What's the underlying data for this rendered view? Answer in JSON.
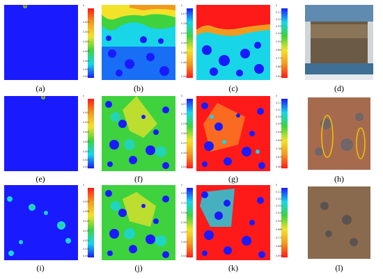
{
  "captions": [
    "(a)",
    "(b)",
    "(c)",
    "(d)",
    "(e)",
    "(f)",
    "(g)",
    "(h)",
    "(i)",
    "(j)",
    "(k)",
    "(l)"
  ],
  "colorbars": {
    "a": {
      "top": "0",
      "ticks": [
        "0.001",
        "0.001",
        "0.002",
        "0.003",
        "0.003",
        "0.004",
        "0.004"
      ]
    },
    "b": {
      "top": "0",
      "ticks": [
        "0.079",
        "0.158",
        "0.231",
        "0.305",
        "0.385",
        "0.462",
        "0.490"
      ]
    },
    "c": {
      "top": "0",
      "ticks": [
        "0.11",
        "0.221",
        "0.332",
        "0.442",
        "0.552",
        "0.663",
        "0.772",
        "0.883",
        "0.994"
      ]
    },
    "e": {
      "top": "0",
      "ticks": [
        "0.001",
        "0.001",
        "0.002",
        "0.002",
        "0.003",
        "0.003",
        "0.003"
      ]
    },
    "f": {
      "top": "0",
      "ticks": [
        "0.077",
        "0.151",
        "0.228",
        "0.302",
        "0.377",
        "0.453",
        "0.530"
      ]
    },
    "g": {
      "top": "0",
      "ticks": [
        "0.11",
        "0.22",
        "0.329",
        "0.439",
        "0.549",
        "0.659",
        "0.769",
        "0.879",
        "0.989"
      ]
    },
    "i": {
      "top": "0",
      "ticks": [
        "0.004",
        "0.008",
        "0.013",
        "0.017",
        "0.021",
        "0.025",
        "0.030"
      ]
    },
    "j": {
      "top": "0",
      "ticks": [
        "0.075",
        "0.151",
        "0.226",
        "0.302",
        "0.377",
        "0.453",
        "0.528"
      ]
    },
    "k": {
      "top": "0",
      "ticks": [
        "0.111",
        "0.222",
        "0.333",
        "0.444",
        "0.555",
        "0.666",
        "0.777",
        "0.888",
        "0.999"
      ]
    }
  },
  "colors": {
    "blue": "#1a1aff",
    "cyan": "#18d6e8",
    "green": "#3ed23e",
    "yellow": "#f2e32a",
    "orange": "#f29a1d",
    "red": "#ff1a1a"
  }
}
